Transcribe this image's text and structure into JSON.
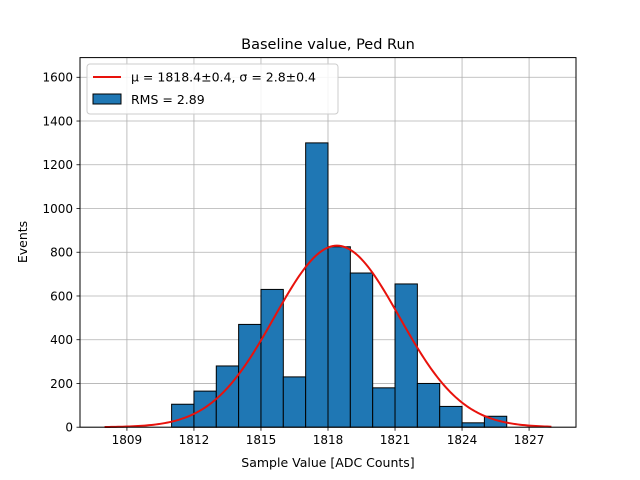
{
  "chart_data": {
    "type": "bar",
    "title": "Baseline value, Ped Run",
    "xlabel": "Sample Value [ADC Counts]",
    "ylabel": "Events",
    "xlim": [
      1806.9,
      1829.1
    ],
    "ylim": [
      0,
      1690
    ],
    "grid": true,
    "legend_position": "top-left",
    "xticks": [
      1809,
      1812,
      1815,
      1818,
      1821,
      1824,
      1827
    ],
    "yticks": [
      0,
      200,
      400,
      600,
      800,
      1000,
      1200,
      1400,
      1600
    ],
    "histogram": {
      "name": "RMS = 2.89",
      "color": "#1f77b4",
      "bin_edges": [
        1811,
        1812,
        1813,
        1814,
        1815,
        1816,
        1817,
        1818,
        1819,
        1820,
        1821,
        1822,
        1823,
        1824,
        1825,
        1826
      ],
      "counts": [
        105,
        165,
        280,
        470,
        630,
        230,
        1300,
        825,
        705,
        180,
        655,
        200,
        95,
        20,
        50
      ]
    },
    "fit": {
      "name_prefix": "μ = 1818.4±0.4, ",
      "name_sigma": "σ = 2.8±0.4",
      "color": "#e8120c",
      "mu": 1818.4,
      "sigma": 2.8,
      "amplitude": 830,
      "x_range": [
        1808,
        1828
      ]
    }
  }
}
